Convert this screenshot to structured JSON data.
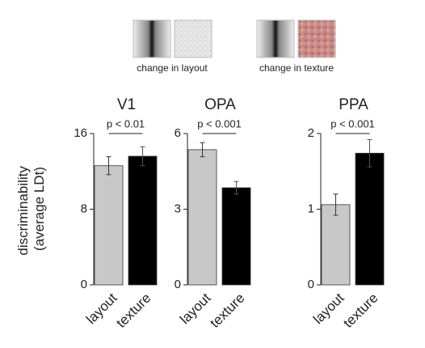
{
  "annotations": [
    "change in layout",
    "change in texture"
  ],
  "chart_data": [
    {
      "type": "bar",
      "title": "V1",
      "ylabel": [
        "discriminability",
        "(average LDt)"
      ],
      "categories": [
        "layout",
        "texture"
      ],
      "values": [
        12.6,
        13.6
      ],
      "errors": [
        0.95,
        1.0
      ],
      "colors": [
        "#c8c8c8",
        "#000000"
      ],
      "ylim": [
        0,
        16
      ],
      "yticks": [
        0,
        8,
        16
      ],
      "significance": "p < 0.01"
    },
    {
      "type": "bar",
      "title": "OPA",
      "categories": [
        "layout",
        "texture"
      ],
      "values": [
        5.36,
        3.85
      ],
      "errors": [
        0.28,
        0.25
      ],
      "colors": [
        "#c8c8c8",
        "#000000"
      ],
      "ylim": [
        0,
        6
      ],
      "yticks": [
        0,
        3,
        6
      ],
      "significance": "p < 0.001"
    },
    {
      "type": "bar",
      "title": "PPA",
      "categories": [
        "layout",
        "texture"
      ],
      "values": [
        1.06,
        1.74
      ],
      "errors": [
        0.14,
        0.18
      ],
      "colors": [
        "#c8c8c8",
        "#000000"
      ],
      "ylim": [
        0,
        2
      ],
      "yticks": [
        0,
        1,
        2
      ],
      "significance": "p < 0.001"
    }
  ]
}
